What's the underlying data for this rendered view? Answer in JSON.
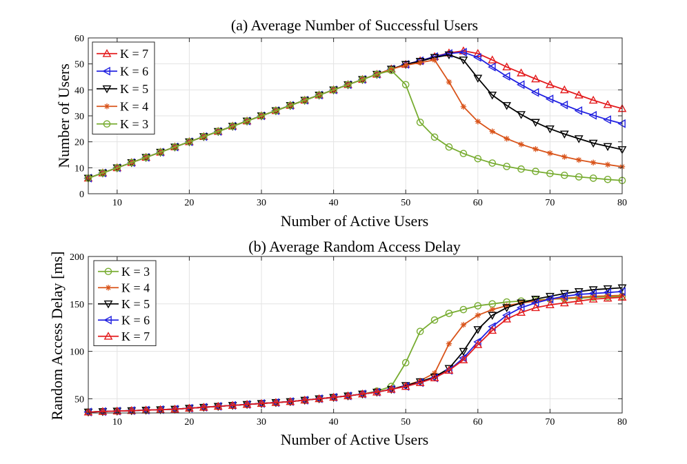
{
  "chart_data": [
    {
      "type": "line",
      "title": "(a) Average Number of Successful Users",
      "xlabel": "Number of Active Users",
      "ylabel": "Number of Users",
      "xlim": [
        6,
        80
      ],
      "ylim": [
        0,
        60
      ],
      "xticks": [
        10,
        20,
        30,
        40,
        50,
        60,
        70,
        80
      ],
      "yticks": [
        0,
        10,
        20,
        30,
        40,
        50,
        60
      ],
      "grid": true,
      "legend_position": "top-left",
      "x": [
        6,
        8,
        10,
        12,
        14,
        16,
        18,
        20,
        22,
        24,
        26,
        28,
        30,
        32,
        34,
        36,
        38,
        40,
        42,
        44,
        46,
        48,
        50,
        52,
        54,
        56,
        58,
        60,
        62,
        64,
        66,
        68,
        70,
        72,
        74,
        76,
        78,
        80
      ],
      "series": [
        {
          "name": "K = 7",
          "color": "#e31a1c",
          "marker": "triangle-up",
          "values": [
            6,
            8,
            10,
            12,
            14,
            16,
            18,
            20,
            22,
            24,
            26,
            28,
            30,
            32,
            34,
            36,
            38,
            40,
            42,
            44,
            46,
            48,
            49.8,
            51.2,
            52.8,
            54.2,
            55,
            54,
            51.5,
            48.8,
            46.5,
            44.2,
            42,
            40,
            38,
            36,
            34.3,
            32.8
          ]
        },
        {
          "name": "K = 6",
          "color": "#1f1fe0",
          "marker": "triangle-left",
          "values": [
            6,
            8,
            10,
            12,
            14,
            16,
            18,
            20,
            22,
            24,
            26,
            28,
            30,
            32,
            34,
            36,
            38,
            40,
            42,
            44,
            46,
            48,
            49.8,
            51.2,
            52.8,
            54,
            54.5,
            52.5,
            48.8,
            45.2,
            42,
            39,
            36.5,
            34.2,
            32,
            30.2,
            28.5,
            27
          ]
        },
        {
          "name": "K = 5",
          "color": "#000000",
          "marker": "triangle-down",
          "values": [
            6,
            8,
            10,
            12,
            14,
            16,
            18,
            20,
            22,
            24,
            26,
            28,
            30,
            32,
            34,
            36,
            38,
            40,
            42,
            44,
            46,
            48,
            49.8,
            51,
            52.5,
            53.5,
            51.5,
            44.5,
            38,
            34,
            30.5,
            27.5,
            25,
            23,
            21.2,
            19.5,
            18.2,
            17
          ]
        },
        {
          "name": "K = 4",
          "color": "#d95319",
          "marker": "asterisk",
          "values": [
            6,
            8,
            10,
            12,
            14,
            16,
            18,
            20,
            22,
            24,
            26,
            28,
            30,
            32,
            34,
            36,
            38,
            40,
            42,
            44,
            46,
            48,
            49.5,
            50.5,
            51.5,
            43,
            33.5,
            27.8,
            24,
            21.2,
            19,
            17.2,
            15.6,
            14.2,
            13,
            12,
            11.2,
            10.4
          ]
        },
        {
          "name": "K = 3",
          "color": "#77ac30",
          "marker": "circle",
          "values": [
            6,
            8,
            10,
            12,
            14,
            16,
            18,
            20,
            22,
            24,
            26,
            28,
            30,
            32,
            34,
            36,
            38,
            40,
            42,
            44,
            46,
            47.5,
            42,
            27.5,
            21.8,
            18,
            15.5,
            13.5,
            11.8,
            10.5,
            9.5,
            8.6,
            7.8,
            7.1,
            6.5,
            6,
            5.5,
            5.1
          ]
        }
      ]
    },
    {
      "type": "line",
      "title": "(b) Average Random Access Delay",
      "xlabel": "Number of Active Users",
      "ylabel": "Random Access Delay [ms]",
      "xlim": [
        6,
        80
      ],
      "ylim": [
        35,
        200
      ],
      "xticks": [
        10,
        20,
        30,
        40,
        50,
        60,
        70,
        80
      ],
      "yticks": [
        50,
        100,
        150,
        200
      ],
      "grid": true,
      "legend_position": "top-left",
      "x": [
        6,
        8,
        10,
        12,
        14,
        16,
        18,
        20,
        22,
        24,
        26,
        28,
        30,
        32,
        34,
        36,
        38,
        40,
        42,
        44,
        46,
        48,
        50,
        52,
        54,
        56,
        58,
        60,
        62,
        64,
        66,
        68,
        70,
        72,
        74,
        76,
        78,
        80
      ],
      "series": [
        {
          "name": "K = 3",
          "color": "#77ac30",
          "marker": "circle",
          "values": [
            36,
            36.5,
            37,
            37.5,
            38,
            38.5,
            39,
            40,
            41,
            42,
            43,
            44,
            45,
            46,
            47,
            48.5,
            50,
            51.5,
            53,
            55,
            58,
            63,
            88,
            121,
            133,
            140,
            144,
            148,
            150,
            152,
            153,
            154,
            155,
            155.5,
            156,
            157,
            157.5,
            158
          ]
        },
        {
          "name": "K = 4",
          "color": "#d95319",
          "marker": "asterisk",
          "values": [
            36,
            36.5,
            37,
            37.5,
            38,
            38.5,
            39,
            40,
            41,
            42,
            43,
            44,
            45,
            46,
            47,
            48.5,
            50,
            51.5,
            53,
            55,
            57,
            60,
            64,
            69,
            77,
            108,
            128,
            138,
            144,
            148,
            151,
            153,
            155,
            156,
            157,
            158,
            158.5,
            159
          ]
        },
        {
          "name": "K = 5",
          "color": "#000000",
          "marker": "triangle-down",
          "values": [
            36,
            36.5,
            37,
            37.5,
            38,
            38.5,
            39,
            40,
            41,
            42,
            43,
            44,
            45,
            46,
            47,
            48.5,
            50,
            51.5,
            53,
            55,
            57,
            60,
            64,
            68,
            73,
            82,
            100,
            123,
            138,
            146,
            151,
            155,
            158,
            161,
            163,
            165,
            166,
            167
          ]
        },
        {
          "name": "K = 6",
          "color": "#1f1fe0",
          "marker": "triangle-left",
          "values": [
            36,
            36.5,
            37,
            37.5,
            38,
            38.5,
            39,
            40,
            41,
            42,
            43,
            44,
            45,
            46,
            47,
            48.5,
            50,
            51.5,
            53,
            55,
            57,
            60,
            63,
            67,
            72,
            80,
            93,
            110,
            126,
            138,
            146,
            151,
            155,
            158,
            160,
            161,
            162,
            163
          ]
        },
        {
          "name": "K = 7",
          "color": "#e31a1c",
          "marker": "triangle-up",
          "values": [
            36,
            36.5,
            37,
            37.5,
            38,
            38.5,
            39,
            40,
            41,
            42,
            43,
            44,
            45,
            46,
            47,
            48.5,
            50,
            51.5,
            53,
            55,
            57,
            60,
            63,
            67,
            72,
            80,
            91,
            107,
            122,
            134,
            141,
            146,
            149,
            151,
            153,
            155,
            156,
            157
          ]
        }
      ]
    }
  ]
}
